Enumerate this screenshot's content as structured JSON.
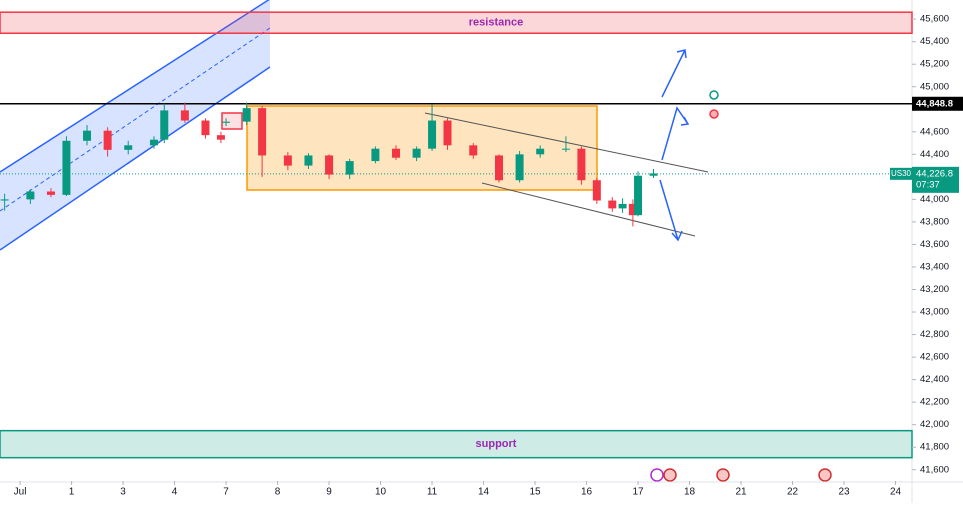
{
  "chart_data": {
    "type": "candlestick",
    "symbol": "US30",
    "x": [
      -0.3,
      0.2,
      0.6,
      0.9,
      1.3,
      1.7,
      2.1,
      2.6,
      2.8,
      3.2,
      3.6,
      3.9,
      4.0,
      4.4,
      4.7,
      5.2,
      5.6,
      6.0,
      6.4,
      6.9,
      7.3,
      7.7,
      8.0,
      8.3,
      8.8,
      9.3,
      9.7,
      10.1,
      10.6,
      10.9,
      11.2,
      11.5,
      11.7,
      11.9,
      12.0,
      12.3
    ],
    "open": [
      43990,
      44000,
      44070,
      44040,
      44520,
      44610,
      44440,
      44480,
      44530,
      44790,
      44700,
      44570,
      44680,
      44690,
      44810,
      44390,
      44300,
      44390,
      44220,
      44340,
      44450,
      44370,
      44450,
      44700,
      44480,
      44390,
      44170,
      44400,
      44450,
      44450,
      44170,
      43990,
      43920,
      43960,
      43860,
      44210
    ],
    "high": [
      44050,
      44090,
      44100,
      44560,
      44660,
      44640,
      44520,
      44560,
      44850,
      44860,
      44720,
      44600,
      44720,
      44860,
      44830,
      44420,
      44410,
      44400,
      44360,
      44470,
      44480,
      44470,
      44840,
      44720,
      44500,
      44400,
      44430,
      44480,
      44560,
      44470,
      44190,
      44020,
      44010,
      44000,
      44250,
      44270
    ],
    "low": [
      43900,
      43960,
      44020,
      44030,
      44480,
      44380,
      44400,
      44450,
      44500,
      44680,
      44540,
      44500,
      44650,
      44660,
      44200,
      44260,
      44270,
      44180,
      44180,
      44320,
      44350,
      44340,
      44430,
      44440,
      44360,
      44150,
      44150,
      44370,
      44420,
      44130,
      43960,
      43890,
      43880,
      43760,
      43850,
      44190
    ],
    "close": [
      44000,
      44070,
      44040,
      44520,
      44610,
      44440,
      44480,
      44530,
      44790,
      44700,
      44570,
      44530,
      44690,
      44810,
      44390,
      44300,
      44390,
      44220,
      44340,
      44450,
      44370,
      44450,
      44700,
      44480,
      44390,
      44170,
      44400,
      44450,
      44450,
      44170,
      43990,
      43920,
      43960,
      43860,
      44210,
      44230
    ],
    "up_color": "#089981",
    "down_color": "#f23645",
    "xlim": [
      -0.39,
      17.32
    ],
    "ylim": [
      41500,
      45770
    ],
    "xticks": [
      {
        "value": 0,
        "label": "Jul"
      },
      1,
      {
        "value": 2,
        "label": "3"
      },
      {
        "value": 3,
        "label": "4"
      },
      {
        "value": 4,
        "label": "7"
      },
      {
        "value": 5,
        "label": "8"
      },
      {
        "value": 6,
        "label": "9"
      },
      {
        "value": 7,
        "label": "10"
      },
      {
        "value": 8,
        "label": "11"
      },
      {
        "value": 9,
        "label": "14"
      },
      {
        "value": 10,
        "label": "15"
      },
      {
        "value": 11,
        "label": "16"
      },
      {
        "value": 12,
        "label": "17"
      },
      {
        "value": 13,
        "label": "18"
      },
      {
        "value": 14,
        "label": "21"
      },
      {
        "value": 15,
        "label": "22"
      },
      {
        "value": 16,
        "label": "23"
      },
      {
        "value": 17,
        "label": "24"
      }
    ],
    "yticks": [
      {
        "value": 41600,
        "label": "41,600"
      },
      {
        "value": 41800,
        "label": "41,800"
      },
      {
        "value": 42000,
        "label": "42,000"
      },
      {
        "value": 42200,
        "label": "42,200"
      },
      {
        "value": 42400,
        "label": "42,400"
      },
      {
        "value": 42600,
        "label": "42,600"
      },
      {
        "value": 42800,
        "label": "42,800"
      },
      {
        "value": 43000,
        "label": "43,000"
      },
      {
        "value": 43200,
        "label": "43,200"
      },
      {
        "value": 43400,
        "label": "43,400"
      },
      {
        "value": 43600,
        "label": "43,600"
      },
      {
        "value": 43800,
        "label": "43,800"
      },
      {
        "value": 44000,
        "label": "44,000"
      },
      {
        "value": 44200,
        "label": "44,200"
      },
      {
        "value": 44400,
        "label": "44,400"
      },
      {
        "value": 44600,
        "label": "44,600"
      },
      {
        "value": 45000,
        "label": "45,000"
      },
      {
        "value": 45200,
        "label": "45,200"
      },
      {
        "value": 45400,
        "label": "45,400"
      },
      {
        "value": 45600,
        "label": "45,600"
      }
    ],
    "grid": false,
    "zones": [
      {
        "name": "resistance",
        "range": [
          45475,
          45662
        ],
        "color": "#f23645"
      },
      {
        "name": "support",
        "range": [
          41707,
          41947
        ],
        "color": "#089981"
      }
    ],
    "level": {
      "value": 44848.8,
      "label": "44,848.8",
      "color": "#000000"
    },
    "last_price": {
      "value": 44226.8,
      "label": "44,226.8",
      "color": "#089981"
    },
    "countdown": "07:37"
  }
}
